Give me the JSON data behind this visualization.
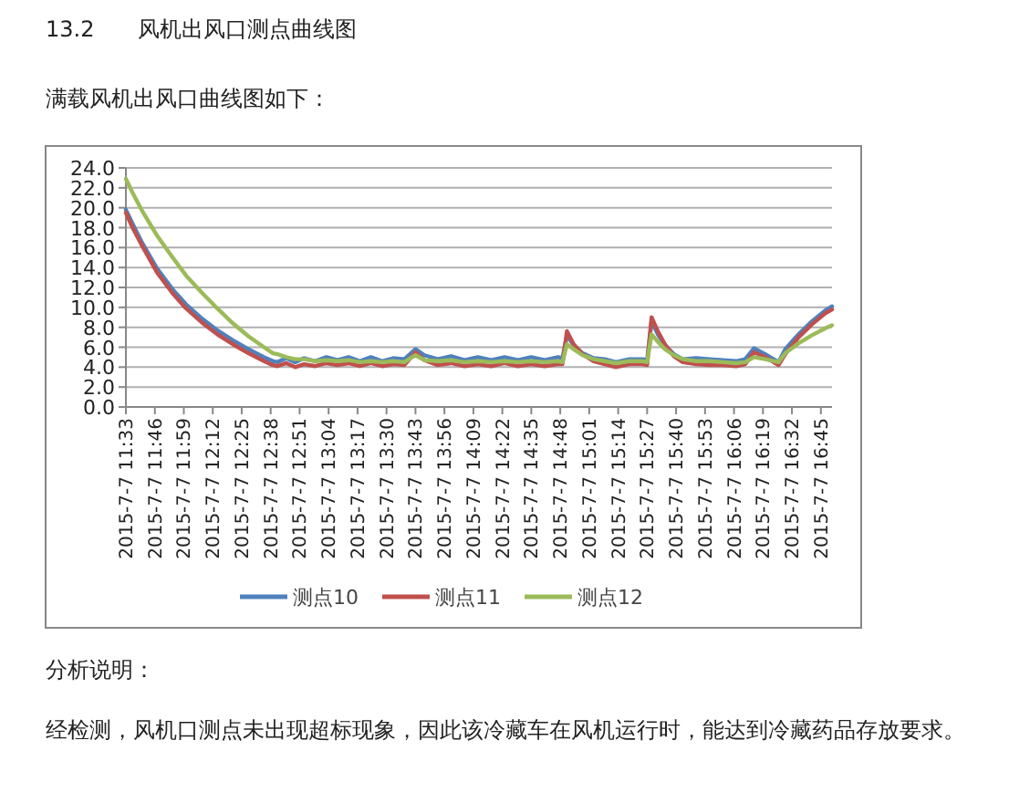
{
  "chart_data": {
    "type": "line",
    "title": "13.2　　风机出风口测点曲线图",
    "subtitle": "满载风机出风口曲线图如下：",
    "annotations": [
      "分析说明：",
      "经检测，风机口测点未出现超标现象，因此该冷藏车在风机运行时，能达到冷藏药品存放要求。"
    ],
    "x": [
      "2015-07-07T11:33",
      "2015-07-07T11:36",
      "2015-07-07T11:40",
      "2015-07-07T11:47",
      "2015-07-07T11:54",
      "2015-07-07T12:00",
      "2015-07-07T12:07",
      "2015-07-07T12:14",
      "2015-07-07T12:21",
      "2015-07-07T12:28",
      "2015-07-07T12:35",
      "2015-07-07T12:39",
      "2015-07-07T12:41",
      "2015-07-07T12:45",
      "2015-07-07T12:49",
      "2015-07-07T12:53",
      "2015-07-07T12:58",
      "2015-07-07T13:03",
      "2015-07-07T13:08",
      "2015-07-07T13:13",
      "2015-07-07T13:18",
      "2015-07-07T13:23",
      "2015-07-07T13:28",
      "2015-07-07T13:33",
      "2015-07-07T13:38",
      "2015-07-07T13:43",
      "2015-07-07T13:47",
      "2015-07-07T13:53",
      "2015-07-07T13:59",
      "2015-07-07T14:05",
      "2015-07-07T14:11",
      "2015-07-07T14:17",
      "2015-07-07T14:23",
      "2015-07-07T14:29",
      "2015-07-07T14:35",
      "2015-07-07T14:41",
      "2015-07-07T14:47",
      "2015-07-07T14:49",
      "2015-07-07T14:51",
      "2015-07-07T14:54",
      "2015-07-07T14:58",
      "2015-07-07T15:03",
      "2015-07-07T15:08",
      "2015-07-07T15:13",
      "2015-07-07T15:19",
      "2015-07-07T15:25",
      "2015-07-07T15:27",
      "2015-07-07T15:29",
      "2015-07-07T15:32",
      "2015-07-07T15:35",
      "2015-07-07T15:39",
      "2015-07-07T15:43",
      "2015-07-07T15:49",
      "2015-07-07T15:55",
      "2015-07-07T16:01",
      "2015-07-07T16:07",
      "2015-07-07T16:11",
      "2015-07-07T16:15",
      "2015-07-07T16:20",
      "2015-07-07T16:26",
      "2015-07-07T16:29",
      "2015-07-07T16:35",
      "2015-07-07T16:41",
      "2015-07-07T16:47",
      "2015-07-07T16:50"
    ],
    "series": [
      {
        "name": "测点10",
        "color": "#4f81bd",
        "values": [
          19.8,
          18.4,
          16.6,
          13.9,
          11.8,
          10.3,
          8.9,
          7.7,
          6.7,
          5.8,
          5.0,
          4.6,
          4.5,
          4.9,
          4.5,
          4.9,
          4.6,
          5.0,
          4.7,
          5.0,
          4.6,
          5.0,
          4.6,
          4.9,
          4.8,
          5.8,
          5.2,
          4.8,
          5.1,
          4.7,
          5.0,
          4.7,
          5.0,
          4.7,
          5.0,
          4.7,
          5.0,
          4.9,
          7.2,
          6.2,
          5.4,
          4.9,
          4.8,
          4.5,
          4.8,
          4.8,
          4.7,
          8.6,
          7.2,
          6.2,
          5.3,
          4.8,
          4.9,
          4.8,
          4.7,
          4.6,
          4.8,
          5.9,
          5.3,
          4.5,
          5.8,
          7.3,
          8.6,
          9.7,
          10.1
        ]
      },
      {
        "name": "测点11",
        "color": "#c0504d",
        "values": [
          19.5,
          18.0,
          16.3,
          13.5,
          11.4,
          9.9,
          8.5,
          7.3,
          6.3,
          5.4,
          4.6,
          4.2,
          4.1,
          4.4,
          4.0,
          4.3,
          4.1,
          4.4,
          4.2,
          4.4,
          4.1,
          4.4,
          4.1,
          4.3,
          4.2,
          5.5,
          4.7,
          4.2,
          4.4,
          4.1,
          4.3,
          4.1,
          4.4,
          4.1,
          4.3,
          4.1,
          4.3,
          4.3,
          7.6,
          6.3,
          5.3,
          4.6,
          4.3,
          4.0,
          4.3,
          4.3,
          4.2,
          9.0,
          7.5,
          6.3,
          5.1,
          4.5,
          4.3,
          4.2,
          4.2,
          4.1,
          4.3,
          5.5,
          5.0,
          4.2,
          5.3,
          7.0,
          8.3,
          9.4,
          9.8
        ]
      },
      {
        "name": "测点12",
        "color": "#9bbb59",
        "values": [
          22.9,
          21.5,
          19.8,
          17.2,
          15.0,
          13.2,
          11.5,
          9.9,
          8.4,
          7.1,
          6.0,
          5.4,
          5.3,
          5.0,
          4.8,
          4.8,
          4.6,
          4.7,
          4.6,
          4.7,
          4.5,
          4.6,
          4.5,
          4.6,
          4.5,
          5.2,
          4.7,
          4.6,
          4.7,
          4.5,
          4.6,
          4.5,
          4.6,
          4.5,
          4.6,
          4.5,
          4.6,
          4.5,
          6.3,
          5.8,
          5.2,
          4.8,
          4.6,
          4.4,
          4.6,
          4.6,
          4.5,
          7.3,
          6.5,
          5.8,
          5.2,
          4.8,
          4.6,
          4.6,
          4.5,
          4.4,
          4.5,
          5.0,
          4.8,
          4.5,
          5.4,
          6.4,
          7.2,
          7.9,
          8.2
        ]
      }
    ],
    "xlim": [
      "2015-07-07T11:33",
      "2015-07-07T16:50"
    ],
    "xticks": [
      {
        "value": "2015-07-07T11:33",
        "label": "2015-7-7 11:33"
      },
      {
        "value": "2015-07-07T11:46",
        "label": "2015-7-7 11:46"
      },
      {
        "value": "2015-07-07T11:59",
        "label": "2015-7-7 11:59"
      },
      {
        "value": "2015-07-07T12:12",
        "label": "2015-7-7 12:12"
      },
      {
        "value": "2015-07-07T12:25",
        "label": "2015-7-7 12:25"
      },
      {
        "value": "2015-07-07T12:38",
        "label": "2015-7-7 12:38"
      },
      {
        "value": "2015-07-07T12:51",
        "label": "2015-7-7 12:51"
      },
      {
        "value": "2015-07-07T13:04",
        "label": "2015-7-7 13:04"
      },
      {
        "value": "2015-07-07T13:17",
        "label": "2015-7-7 13:17"
      },
      {
        "value": "2015-07-07T13:30",
        "label": "2015-7-7 13:30"
      },
      {
        "value": "2015-07-07T13:43",
        "label": "2015-7-7 13:43"
      },
      {
        "value": "2015-07-07T13:56",
        "label": "2015-7-7 13:56"
      },
      {
        "value": "2015-07-07T14:09",
        "label": "2015-7-7 14:09"
      },
      {
        "value": "2015-07-07T14:22",
        "label": "2015-7-7 14:22"
      },
      {
        "value": "2015-07-07T14:35",
        "label": "2015-7-7 14:35"
      },
      {
        "value": "2015-07-07T14:48",
        "label": "2015-7-7 14:48"
      },
      {
        "value": "2015-07-07T15:01",
        "label": "2015-7-7 15:01"
      },
      {
        "value": "2015-07-07T15:14",
        "label": "2015-7-7 15:14"
      },
      {
        "value": "2015-07-07T15:27",
        "label": "2015-7-7 15:27"
      },
      {
        "value": "2015-07-07T15:40",
        "label": "2015-7-7 15:40"
      },
      {
        "value": "2015-07-07T15:53",
        "label": "2015-7-7 15:53"
      },
      {
        "value": "2015-07-07T16:06",
        "label": "2015-7-7 16:06"
      },
      {
        "value": "2015-07-07T16:19",
        "label": "2015-7-7 16:19"
      },
      {
        "value": "2015-07-07T16:32",
        "label": "2015-7-7 16:32"
      },
      {
        "value": "2015-07-07T16:45",
        "label": "2015-7-7 16:45"
      }
    ],
    "ylim": [
      0,
      24
    ],
    "yticks": [
      {
        "value": 0,
        "label": "0.0"
      },
      {
        "value": 2,
        "label": "2.0"
      },
      {
        "value": 4,
        "label": "4.0"
      },
      {
        "value": 6,
        "label": "6.0"
      },
      {
        "value": 8,
        "label": "8.0"
      },
      {
        "value": 10,
        "label": "10.0"
      },
      {
        "value": 12,
        "label": "12.0"
      },
      {
        "value": 14,
        "label": "14.0"
      },
      {
        "value": 16,
        "label": "16.0"
      },
      {
        "value": 18,
        "label": "18.0"
      },
      {
        "value": 20,
        "label": "20.0"
      },
      {
        "value": 22,
        "label": "22.0"
      },
      {
        "value": 24,
        "label": "24.0"
      }
    ],
    "grid": "y",
    "legend": "bottom",
    "marker": "none",
    "line_style": "solid"
  }
}
